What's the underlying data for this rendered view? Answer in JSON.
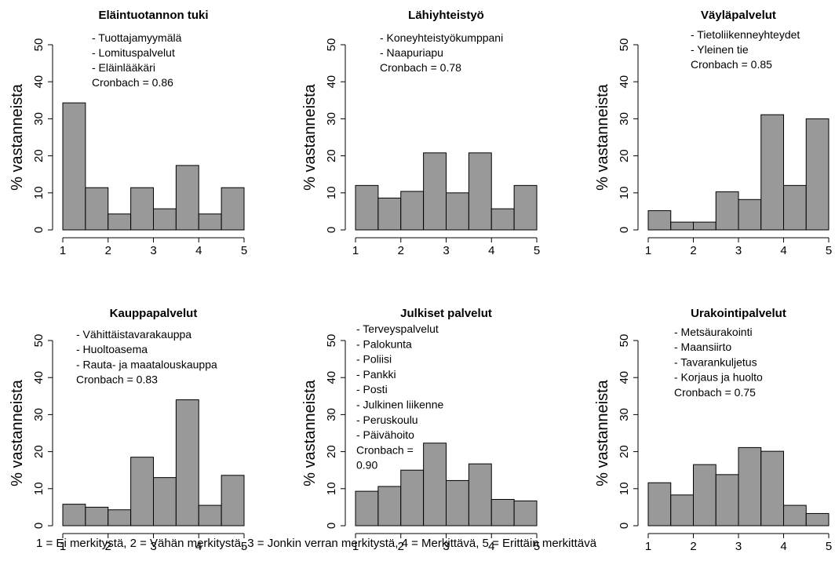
{
  "figure": {
    "footnote": "1 = Ei merkitystä, 2 = Vähän merkitystä, 3 = Jonkin verran merkitystä, 4 = Merkittävä, 5 = Erittäin merkittävä"
  },
  "chart_data": [
    {
      "type": "bar",
      "title": "Eläintuotannon tuki",
      "ylabel": "% vastanneista",
      "xlabel": "",
      "xlim": [
        1,
        5
      ],
      "ylim": [
        0,
        50
      ],
      "x_ticks": [
        1,
        2,
        3,
        4,
        5
      ],
      "y_ticks": [
        0,
        10,
        20,
        30,
        40,
        50
      ],
      "bin_edges": [
        1,
        1.5,
        2,
        2.5,
        3,
        3.5,
        4,
        4.5,
        5
      ],
      "values": [
        34.3,
        11.4,
        4.3,
        11.4,
        5.7,
        17.4,
        4.3,
        11.4
      ],
      "annotation": [
        "- Tuottajamyymälä",
        "- Lomituspalvelut",
        "- Eläinlääkäri",
        "Cronbach = 0.86"
      ],
      "bar_color": "#999999"
    },
    {
      "type": "bar",
      "title": "Lähiyhteistyö",
      "ylabel": "% vastanneista",
      "xlabel": "",
      "xlim": [
        1,
        5
      ],
      "ylim": [
        0,
        50
      ],
      "x_ticks": [
        1,
        2,
        3,
        4,
        5
      ],
      "y_ticks": [
        0,
        10,
        20,
        30,
        40,
        50
      ],
      "bin_edges": [
        1,
        1.5,
        2,
        2.5,
        3,
        3.5,
        4,
        4.5,
        5
      ],
      "values": [
        12.0,
        8.6,
        10.4,
        20.8,
        10.0,
        20.8,
        5.7,
        12.0
      ],
      "annotation": [
        "- Koneyhteistyökumppani",
        "- Naapuriapu",
        "Cronbach = 0.78"
      ],
      "bar_color": "#999999"
    },
    {
      "type": "bar",
      "title": "Väyläpalvelut",
      "ylabel": "% vastanneista",
      "xlabel": "",
      "xlim": [
        1,
        5
      ],
      "ylim": [
        0,
        50
      ],
      "x_ticks": [
        1,
        2,
        3,
        4,
        5
      ],
      "y_ticks": [
        0,
        10,
        20,
        30,
        40,
        50
      ],
      "bin_edges": [
        1,
        1.5,
        2,
        2.5,
        3,
        3.5,
        4,
        4.5,
        5
      ],
      "values": [
        5.2,
        2.1,
        2.1,
        10.3,
        8.2,
        31.1,
        12.0,
        30.0
      ],
      "annotation": [
        "- Tietoliikenneyhteydet",
        "- Yleinen tie",
        "Cronbach = 0.85"
      ],
      "bar_color": "#999999"
    },
    {
      "type": "bar",
      "title": "Kauppapalvelut",
      "ylabel": "% vastanneista",
      "xlabel": "",
      "xlim": [
        1,
        5
      ],
      "ylim": [
        0,
        50
      ],
      "x_ticks": [
        1,
        2,
        3,
        4,
        5
      ],
      "y_ticks": [
        0,
        10,
        20,
        30,
        40,
        50
      ],
      "bin_edges": [
        1,
        1.5,
        2,
        2.5,
        3,
        3.5,
        4,
        4.5,
        5
      ],
      "values": [
        5.8,
        5.0,
        4.3,
        18.5,
        13.0,
        34.0,
        5.5,
        13.6
      ],
      "annotation": [
        "- Vähittäistavarakauppa",
        "- Huoltoasema",
        "- Rauta- ja maatalouskauppa",
        "Cronbach = 0.83"
      ],
      "bar_color": "#999999"
    },
    {
      "type": "bar",
      "title": "Julkiset palvelut",
      "ylabel": "% vastanneista",
      "xlabel": "",
      "xlim": [
        1,
        5
      ],
      "ylim": [
        0,
        50
      ],
      "x_ticks": [
        1,
        2,
        3,
        4,
        5
      ],
      "y_ticks": [
        0,
        10,
        20,
        30,
        40,
        50
      ],
      "bin_edges": [
        1,
        1.5,
        2,
        2.5,
        3,
        3.5,
        4,
        4.5,
        5
      ],
      "values": [
        9.3,
        10.6,
        15.0,
        22.3,
        12.2,
        16.7,
        7.1,
        6.7
      ],
      "annotation": [
        "- Terveyspalvelut",
        "- Palokunta",
        "- Poliisi",
        "- Pankki",
        "- Posti",
        "- Julkinen liikenne",
        "- Peruskoulu",
        "- Päivähoito",
        "Cronbach =",
        "0.90"
      ],
      "bar_color": "#999999"
    },
    {
      "type": "bar",
      "title": "Urakointipalvelut",
      "ylabel": "% vastanneista",
      "xlabel": "",
      "xlim": [
        1,
        5
      ],
      "ylim": [
        0,
        50
      ],
      "x_ticks": [
        1,
        2,
        3,
        4,
        5
      ],
      "y_ticks": [
        0,
        10,
        20,
        30,
        40,
        50
      ],
      "bin_edges": [
        1,
        1.5,
        2,
        2.5,
        3,
        3.5,
        4,
        4.5,
        5
      ],
      "values": [
        11.6,
        8.3,
        16.5,
        13.8,
        21.1,
        20.1,
        5.5,
        3.3
      ],
      "annotation": [
        "- Metsäurakointi",
        "- Maansiirto",
        "- Tavarankuljetus",
        "- Korjaus ja huolto",
        "Cronbach = 0.75"
      ],
      "bar_color": "#999999"
    }
  ]
}
